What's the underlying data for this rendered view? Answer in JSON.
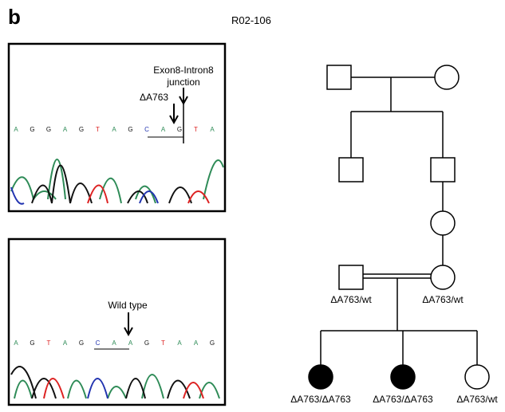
{
  "panel_label": "b",
  "title": "R02-106",
  "top_trace": {
    "annotation_line1": "Exon8-Intron8",
    "annotation_line2": "junction",
    "mutation": "ΔA763",
    "bases": [
      "A",
      "G",
      "G",
      "A",
      "G",
      "T",
      "A",
      "G",
      "C",
      "A",
      "G",
      "T",
      "A"
    ]
  },
  "bottom_trace": {
    "annotation": "Wild type",
    "bases": [
      "A",
      "G",
      "T",
      "A",
      "G",
      "C",
      "A",
      "A",
      "G",
      "T",
      "A",
      "A",
      "G"
    ]
  },
  "pedigree": {
    "nodes": [
      {
        "shape": "square",
        "affected": false
      },
      {
        "shape": "circle",
        "affected": false
      },
      {
        "shape": "square",
        "affected": false
      },
      {
        "shape": "square",
        "affected": false
      },
      {
        "shape": "circle",
        "affected": false
      },
      {
        "shape": "square",
        "affected": false,
        "label": "ΔA763/wt"
      },
      {
        "shape": "circle",
        "affected": false,
        "label": "ΔA763/wt"
      },
      {
        "shape": "circle",
        "affected": true,
        "label": "ΔA763/ΔA763"
      },
      {
        "shape": "circle",
        "affected": true,
        "label": "ΔA763/ΔA763"
      },
      {
        "shape": "circle",
        "affected": false,
        "label": "ΔA763/wt"
      }
    ]
  }
}
